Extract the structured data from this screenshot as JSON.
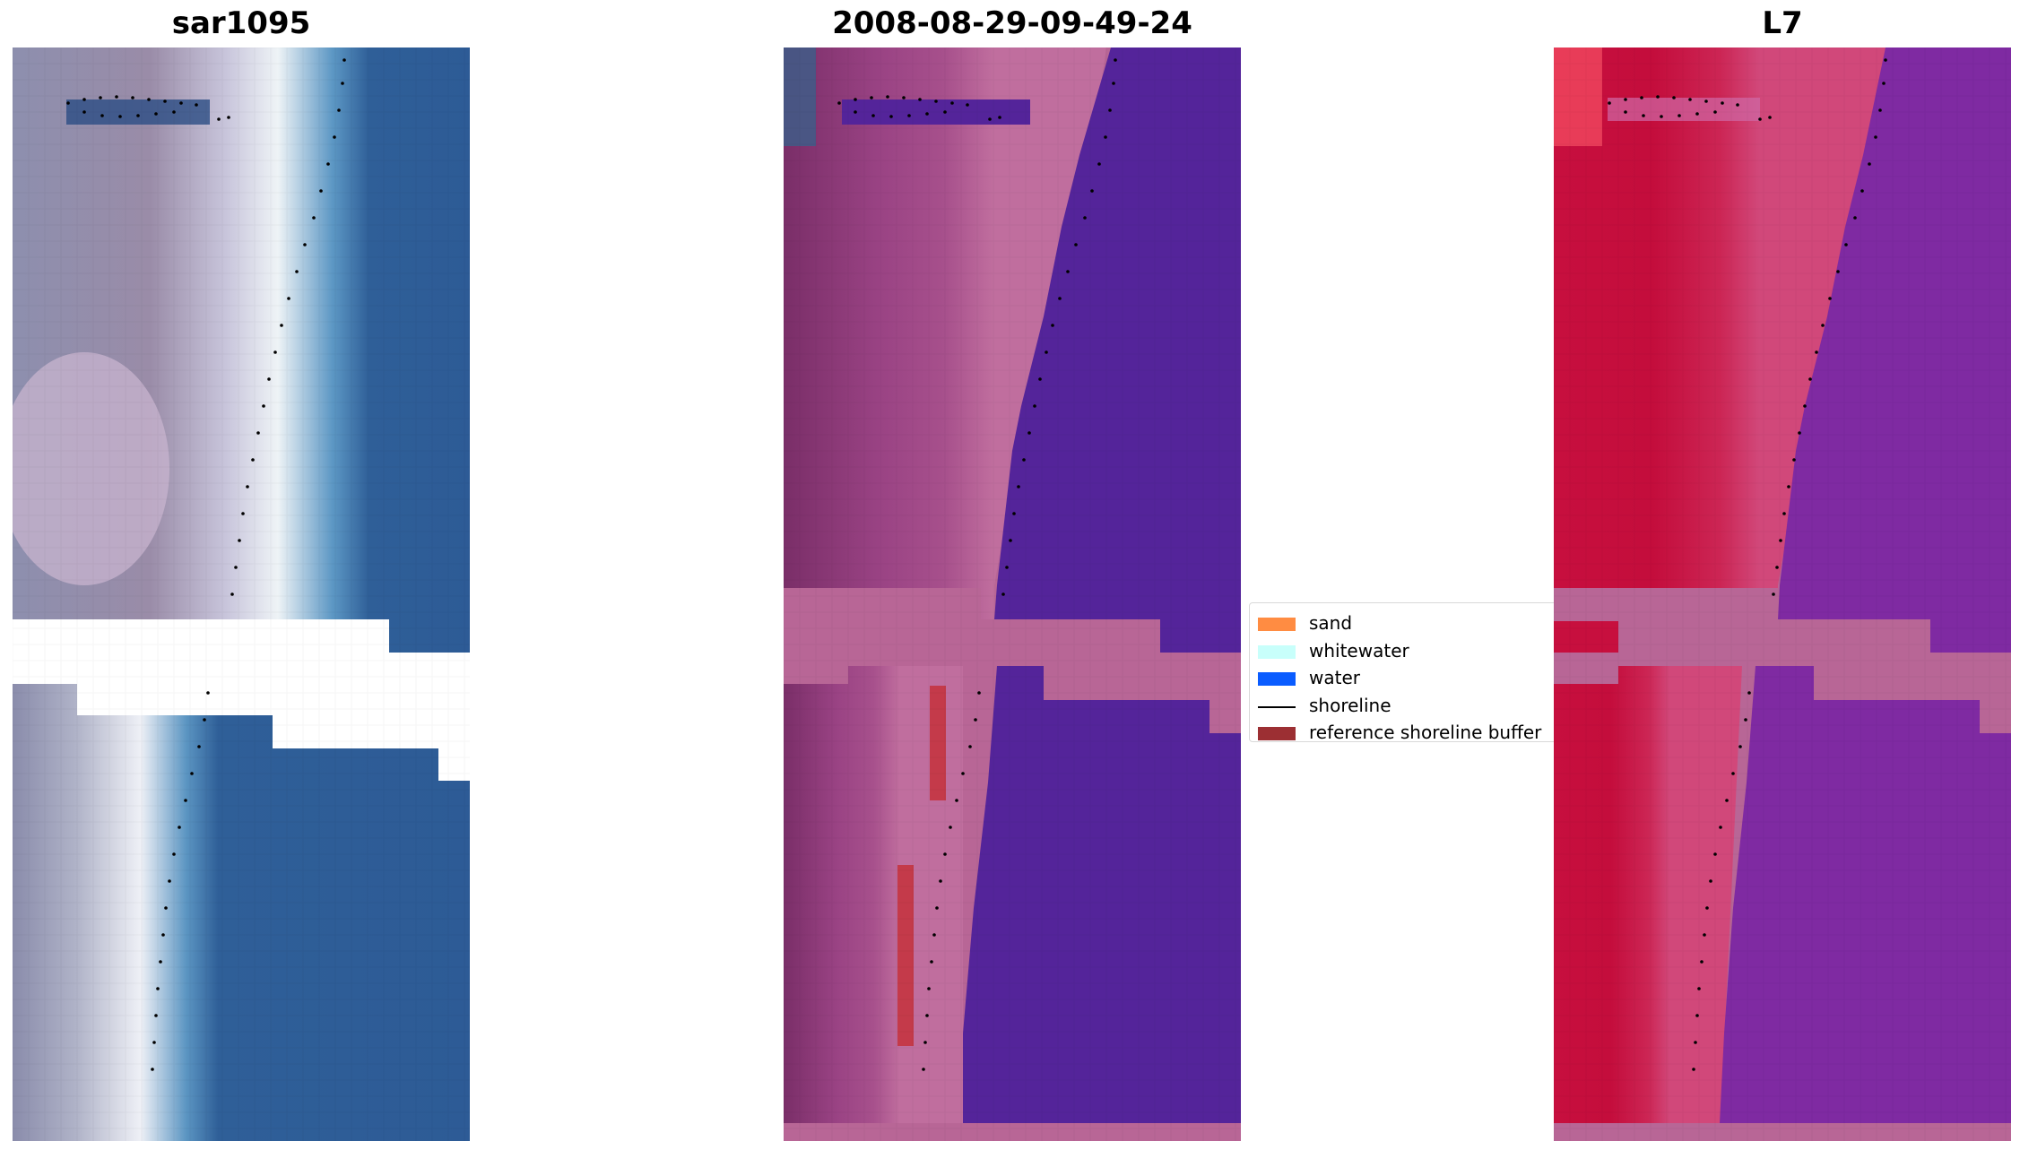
{
  "panels": [
    {
      "title": "sar1095"
    },
    {
      "title": "2008-08-29-09-49-24"
    },
    {
      "title": "L7"
    }
  ],
  "legend": {
    "items": [
      {
        "label": "sand",
        "color": "#ff8c42",
        "kind": "patch"
      },
      {
        "label": "whitewater",
        "color": "#c8fffb",
        "kind": "patch"
      },
      {
        "label": "water",
        "color": "#0a5cff",
        "kind": "patch"
      },
      {
        "label": "shoreline",
        "color": "#000000",
        "kind": "line"
      },
      {
        "label": "reference shoreline buffer",
        "color": "#9c2f33",
        "kind": "patch"
      }
    ]
  },
  "colors": {
    "rgb_water": "#2f5f98",
    "rgb_whitewater": "#e9f2f4",
    "rgb_land": "#8f90ad",
    "class_water": "#54249a",
    "class_land": "#8a3a78",
    "class_nodata": "#b86696",
    "class_buffer": "#c43a4a",
    "mndwi_land": "#c6173f",
    "mndwi_water": "#7f2aa2",
    "mndwi_nodata": "#b86696",
    "shoreline": "#000000"
  }
}
